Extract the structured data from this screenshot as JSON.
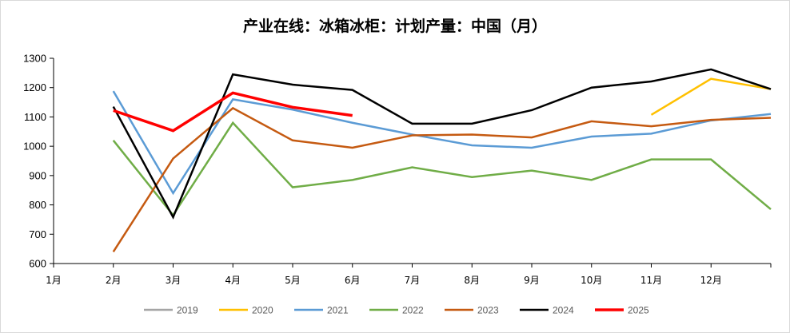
{
  "chart_data": {
    "type": "line",
    "title": "产业在线：冰箱冰柜：计划产量：中国（月）",
    "xlabel": "",
    "ylabel": "",
    "categories": [
      "1月",
      "2月",
      "3月",
      "4月",
      "5月",
      "6月",
      "7月",
      "8月",
      "9月",
      "10月",
      "11月",
      "12月"
    ],
    "ylim": [
      600,
      1300
    ],
    "yticks": [
      600,
      700,
      800,
      900,
      1000,
      1100,
      1200,
      1300
    ],
    "legend_position": "bottom",
    "grid": false,
    "series": [
      {
        "name": "2019",
        "color": "#a5a5a5",
        "x": [],
        "values": []
      },
      {
        "name": "2020",
        "color": "#ffc000",
        "x": [
          11,
          12,
          13
        ],
        "values": [
          1107,
          1230,
          1195
        ]
      },
      {
        "name": "2021",
        "color": "#5b9bd5",
        "x": [
          2,
          3,
          4,
          5,
          6,
          7,
          8,
          9,
          10,
          11,
          12,
          13
        ],
        "values": [
          1188,
          840,
          1160,
          1125,
          1080,
          1040,
          1003,
          995,
          1033,
          1043,
          1088,
          1110
        ]
      },
      {
        "name": "2022",
        "color": "#70ad47",
        "x": [
          2,
          3,
          4,
          5,
          6,
          7,
          8,
          9,
          10,
          11,
          12,
          13
        ],
        "values": [
          1020,
          765,
          1080,
          860,
          885,
          928,
          895,
          917,
          885,
          955,
          955,
          785
        ]
      },
      {
        "name": "2023",
        "color": "#c55a11",
        "x": [
          2,
          3,
          4,
          5,
          6,
          7,
          8,
          9,
          10,
          11,
          12,
          13
        ],
        "values": [
          640,
          958,
          1130,
          1020,
          995,
          1037,
          1040,
          1030,
          1085,
          1068,
          1090,
          1097
        ]
      },
      {
        "name": "2024",
        "color": "#000000",
        "x": [
          2,
          3,
          4,
          5,
          6,
          7,
          8,
          9,
          10,
          11,
          12,
          13
        ],
        "values": [
          1135,
          758,
          1245,
          1210,
          1192,
          1077,
          1077,
          1123,
          1200,
          1221,
          1262,
          1195
        ]
      },
      {
        "name": "2025",
        "color": "#ff0000",
        "x": [
          2,
          3,
          4,
          5,
          6
        ],
        "values": [
          1122,
          1053,
          1182,
          1133,
          1105
        ]
      }
    ]
  }
}
